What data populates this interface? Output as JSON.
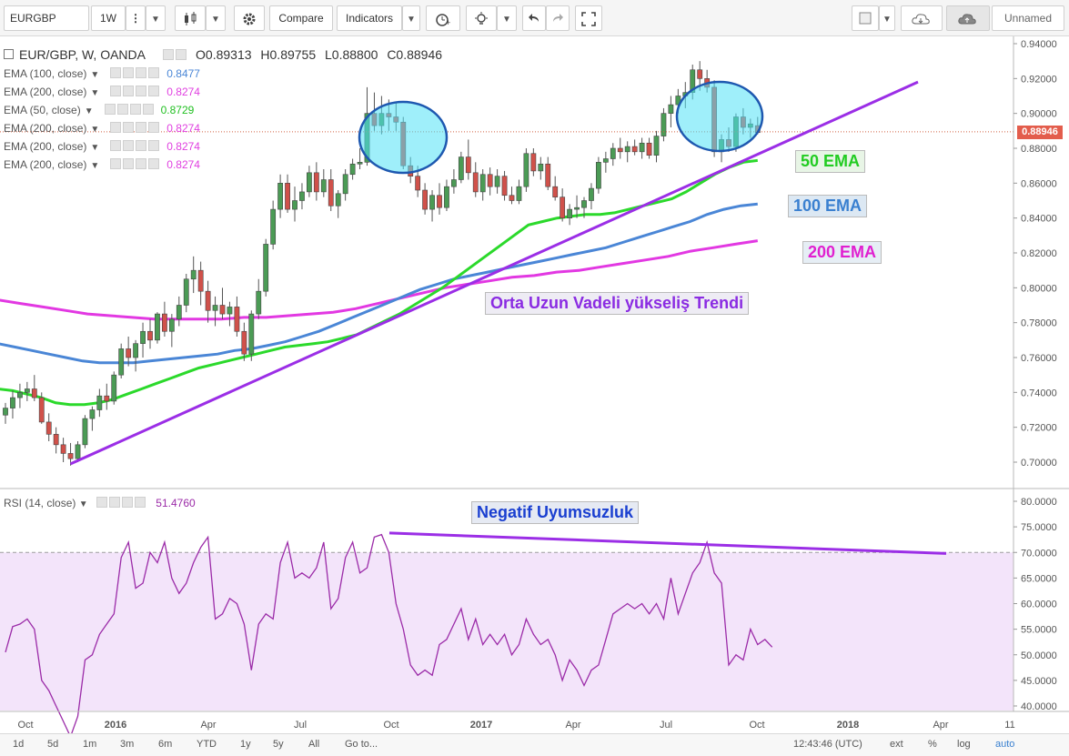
{
  "toolbar": {
    "symbol": "EURGBP",
    "interval": "1W",
    "compare_label": "Compare",
    "indicators_label": "Indicators",
    "layout_label": "Unnamed"
  },
  "legend": {
    "pair_label": "EUR/GBP, W, OANDA",
    "open": "O0.89313",
    "high": "H0.89755",
    "low": "L0.88800",
    "close": "C0.88946",
    "indicators": [
      {
        "label": "EMA (100, close)",
        "value": "0.8477",
        "color": "#4a86d6"
      },
      {
        "label": "EMA (200, close)",
        "value": "0.8274",
        "color": "#e040e0"
      },
      {
        "label": "EMA (50, close)",
        "value": "0.8729",
        "color": "#22c022"
      },
      {
        "label": "EMA (200, close)",
        "value": "0.8274",
        "color": "#e040e0"
      },
      {
        "label": "EMA (200, close)",
        "value": "0.8274",
        "color": "#e040e0"
      },
      {
        "label": "EMA (200, close)",
        "value": "0.8274",
        "color": "#e040e0"
      }
    ],
    "rsi_label": "RSI (14, close)",
    "rsi_value": "51.4760"
  },
  "price_badge": "0.88946",
  "annotations": {
    "ema50": "50 EMA",
    "ema100": "100 EMA",
    "ema200": "200 EMA",
    "trend": "Orta Uzun Vadeli yükseliş Trendi",
    "divergence": "Negatif Uyumsuzluk"
  },
  "bottombar": {
    "ranges": [
      "1d",
      "5d",
      "1m",
      "3m",
      "6m",
      "YTD",
      "1y",
      "5y",
      "All"
    ],
    "goto": "Go to...",
    "time": "12:43:46 (UTC)",
    "ext": "ext",
    "pct": "%",
    "log": "log",
    "auto": "auto"
  },
  "chart_data": [
    {
      "type": "candlestick",
      "ylim": [
        0.69,
        0.945
      ],
      "yticks": [
        "0.94000",
        "0.92000",
        "0.90000",
        "0.88000",
        "0.86000",
        "0.84000",
        "0.82000",
        "0.80000",
        "0.78000",
        "0.76000",
        "0.74000",
        "0.72000",
        "0.70000"
      ],
      "xticks": [
        "Oct",
        "2016",
        "Apr",
        "Jul",
        "Oct",
        "2017",
        "Apr",
        "Jul",
        "Oct",
        "2018",
        "Apr",
        "11"
      ],
      "candles": [
        [
          0.727,
          0.734,
          0.722,
          0.731
        ],
        [
          0.731,
          0.741,
          0.725,
          0.737
        ],
        [
          0.737,
          0.745,
          0.731,
          0.74
        ],
        [
          0.74,
          0.746,
          0.735,
          0.742
        ],
        [
          0.742,
          0.75,
          0.735,
          0.737
        ],
        [
          0.737,
          0.74,
          0.722,
          0.723
        ],
        [
          0.723,
          0.728,
          0.712,
          0.716
        ],
        [
          0.716,
          0.72,
          0.705,
          0.71
        ],
        [
          0.71,
          0.714,
          0.7,
          0.705
        ],
        [
          0.705,
          0.711,
          0.698,
          0.702
        ],
        [
          0.702,
          0.712,
          0.7,
          0.71
        ],
        [
          0.71,
          0.727,
          0.708,
          0.725
        ],
        [
          0.725,
          0.732,
          0.718,
          0.73
        ],
        [
          0.73,
          0.742,
          0.726,
          0.738
        ],
        [
          0.738,
          0.745,
          0.73,
          0.735
        ],
        [
          0.735,
          0.752,
          0.733,
          0.75
        ],
        [
          0.75,
          0.768,
          0.748,
          0.765
        ],
        [
          0.765,
          0.772,
          0.755,
          0.76
        ],
        [
          0.76,
          0.77,
          0.752,
          0.768
        ],
        [
          0.768,
          0.78,
          0.76,
          0.775
        ],
        [
          0.775,
          0.782,
          0.765,
          0.77
        ],
        [
          0.77,
          0.786,
          0.768,
          0.785
        ],
        [
          0.785,
          0.792,
          0.772,
          0.775
        ],
        [
          0.775,
          0.785,
          0.766,
          0.782
        ],
        [
          0.782,
          0.795,
          0.778,
          0.79
        ],
        [
          0.79,
          0.808,
          0.786,
          0.805
        ],
        [
          0.805,
          0.818,
          0.797,
          0.81
        ],
        [
          0.81,
          0.815,
          0.79,
          0.798
        ],
        [
          0.798,
          0.804,
          0.78,
          0.787
        ],
        [
          0.787,
          0.795,
          0.778,
          0.79
        ],
        [
          0.79,
          0.8,
          0.782,
          0.785
        ],
        [
          0.785,
          0.792,
          0.778,
          0.789
        ],
        [
          0.789,
          0.795,
          0.772,
          0.775
        ],
        [
          0.775,
          0.78,
          0.758,
          0.762
        ],
        [
          0.762,
          0.787,
          0.758,
          0.785
        ],
        [
          0.785,
          0.805,
          0.782,
          0.798
        ],
        [
          0.798,
          0.828,
          0.795,
          0.825
        ],
        [
          0.825,
          0.85,
          0.822,
          0.845
        ],
        [
          0.845,
          0.865,
          0.84,
          0.86
        ],
        [
          0.86,
          0.865,
          0.843,
          0.845
        ],
        [
          0.845,
          0.858,
          0.838,
          0.85
        ],
        [
          0.85,
          0.86,
          0.845,
          0.855
        ],
        [
          0.855,
          0.87,
          0.852,
          0.866
        ],
        [
          0.866,
          0.872,
          0.85,
          0.855
        ],
        [
          0.855,
          0.868,
          0.852,
          0.862
        ],
        [
          0.862,
          0.868,
          0.844,
          0.847
        ],
        [
          0.847,
          0.856,
          0.84,
          0.854
        ],
        [
          0.854,
          0.868,
          0.85,
          0.865
        ],
        [
          0.865,
          0.874,
          0.862,
          0.871
        ],
        [
          0.871,
          0.88,
          0.868,
          0.872
        ],
        [
          0.872,
          0.915,
          0.87,
          0.9
        ],
        [
          0.9,
          0.912,
          0.89,
          0.893
        ],
        [
          0.893,
          0.91,
          0.888,
          0.9
        ],
        [
          0.9,
          0.908,
          0.89,
          0.898
        ],
        [
          0.898,
          0.906,
          0.89,
          0.895
        ],
        [
          0.895,
          0.898,
          0.868,
          0.87
        ],
        [
          0.87,
          0.875,
          0.86,
          0.864
        ],
        [
          0.864,
          0.87,
          0.852,
          0.856
        ],
        [
          0.856,
          0.86,
          0.842,
          0.845
        ],
        [
          0.845,
          0.856,
          0.838,
          0.853
        ],
        [
          0.853,
          0.86,
          0.842,
          0.846
        ],
        [
          0.846,
          0.862,
          0.844,
          0.858
        ],
        [
          0.858,
          0.868,
          0.854,
          0.862
        ],
        [
          0.862,
          0.878,
          0.86,
          0.875
        ],
        [
          0.875,
          0.885,
          0.862,
          0.866
        ],
        [
          0.866,
          0.872,
          0.852,
          0.855
        ],
        [
          0.855,
          0.868,
          0.85,
          0.865
        ],
        [
          0.865,
          0.869,
          0.853,
          0.858
        ],
        [
          0.858,
          0.868,
          0.854,
          0.864
        ],
        [
          0.864,
          0.867,
          0.85,
          0.853
        ],
        [
          0.853,
          0.858,
          0.848,
          0.85
        ],
        [
          0.85,
          0.862,
          0.848,
          0.858
        ],
        [
          0.858,
          0.88,
          0.855,
          0.877
        ],
        [
          0.877,
          0.88,
          0.864,
          0.867
        ],
        [
          0.867,
          0.875,
          0.862,
          0.871
        ],
        [
          0.871,
          0.875,
          0.856,
          0.858
        ],
        [
          0.858,
          0.864,
          0.85,
          0.852
        ],
        [
          0.852,
          0.857,
          0.838,
          0.84
        ],
        [
          0.84,
          0.848,
          0.836,
          0.845
        ],
        [
          0.845,
          0.853,
          0.84,
          0.846
        ],
        [
          0.846,
          0.852,
          0.84,
          0.85
        ],
        [
          0.85,
          0.86,
          0.845,
          0.857
        ],
        [
          0.857,
          0.875,
          0.854,
          0.872
        ],
        [
          0.872,
          0.878,
          0.866,
          0.874
        ],
        [
          0.874,
          0.883,
          0.87,
          0.88
        ],
        [
          0.88,
          0.886,
          0.874,
          0.878
        ],
        [
          0.878,
          0.884,
          0.872,
          0.881
        ],
        [
          0.881,
          0.885,
          0.876,
          0.878
        ],
        [
          0.878,
          0.886,
          0.874,
          0.883
        ],
        [
          0.883,
          0.886,
          0.874,
          0.876
        ],
        [
          0.876,
          0.89,
          0.872,
          0.887
        ],
        [
          0.887,
          0.903,
          0.884,
          0.9
        ],
        [
          0.9,
          0.91,
          0.892,
          0.905
        ],
        [
          0.905,
          0.914,
          0.9,
          0.91
        ],
        [
          0.91,
          0.918,
          0.903,
          0.912
        ],
        [
          0.912,
          0.928,
          0.908,
          0.925
        ],
        [
          0.925,
          0.93,
          0.913,
          0.92
        ],
        [
          0.92,
          0.925,
          0.912,
          0.915
        ],
        [
          0.915,
          0.919,
          0.875,
          0.878
        ],
        [
          0.878,
          0.888,
          0.872,
          0.885
        ],
        [
          0.885,
          0.892,
          0.878,
          0.881
        ],
        [
          0.881,
          0.9,
          0.878,
          0.898
        ],
        [
          0.898,
          0.903,
          0.888,
          0.892
        ],
        [
          0.892,
          0.897,
          0.886,
          0.894
        ],
        [
          0.893,
          0.898,
          0.888,
          0.889
        ]
      ],
      "ema50": [
        0.742,
        0.741,
        0.739,
        0.737,
        0.734,
        0.733,
        0.733,
        0.734,
        0.736,
        0.739,
        0.742,
        0.745,
        0.748,
        0.751,
        0.754,
        0.756,
        0.758,
        0.76,
        0.762,
        0.764,
        0.766,
        0.767,
        0.768,
        0.769,
        0.771,
        0.773,
        0.777,
        0.781,
        0.785,
        0.79,
        0.795,
        0.8,
        0.806,
        0.812,
        0.818,
        0.824,
        0.83,
        0.836,
        0.838,
        0.84,
        0.841,
        0.842,
        0.842,
        0.843,
        0.845,
        0.847,
        0.849,
        0.851,
        0.855,
        0.86,
        0.865,
        0.869,
        0.872,
        0.873
      ],
      "ema100": [
        0.768,
        0.766,
        0.764,
        0.762,
        0.76,
        0.758,
        0.757,
        0.757,
        0.757,
        0.758,
        0.759,
        0.76,
        0.761,
        0.762,
        0.764,
        0.765,
        0.767,
        0.769,
        0.772,
        0.775,
        0.779,
        0.783,
        0.787,
        0.791,
        0.795,
        0.799,
        0.802,
        0.805,
        0.807,
        0.809,
        0.811,
        0.813,
        0.815,
        0.817,
        0.819,
        0.821,
        0.823,
        0.826,
        0.829,
        0.832,
        0.835,
        0.838,
        0.842,
        0.845,
        0.847,
        0.848
      ],
      "ema200": [
        0.793,
        0.791,
        0.789,
        0.787,
        0.785,
        0.784,
        0.783,
        0.782,
        0.782,
        0.782,
        0.782,
        0.783,
        0.783,
        0.784,
        0.785,
        0.786,
        0.788,
        0.791,
        0.794,
        0.797,
        0.8,
        0.802,
        0.804,
        0.806,
        0.807,
        0.809,
        0.81,
        0.812,
        0.814,
        0.816,
        0.818,
        0.821,
        0.823,
        0.825,
        0.827
      ],
      "trendline": [
        [
          0.699,
          0.918
        ]
      ],
      "price_line": 0.88946
    },
    {
      "type": "line",
      "name": "RSI (14, close)",
      "ylim": [
        39,
        81
      ],
      "yticks": [
        "80.0000",
        "75.0000",
        "70.0000",
        "65.0000",
        "60.0000",
        "55.0000",
        "50.0000",
        "45.0000",
        "40.0000"
      ],
      "band": [
        30,
        70
      ],
      "values": [
        50.5,
        55.5,
        56,
        57,
        55,
        45,
        43,
        40,
        37,
        34,
        38,
        49,
        50,
        54,
        56,
        58,
        69,
        72,
        63,
        64,
        70,
        68,
        72,
        65,
        62,
        64,
        68,
        71,
        73,
        57,
        58,
        61,
        60,
        56,
        47,
        56,
        58,
        57,
        68,
        72,
        65,
        66,
        65,
        67,
        72,
        59,
        61,
        69,
        72,
        66,
        67,
        73,
        73.5,
        70,
        60,
        55,
        48,
        46,
        47,
        46,
        52,
        53,
        56,
        59,
        53,
        57,
        52,
        54,
        52,
        54,
        50,
        52,
        57,
        54,
        52,
        53,
        50,
        45,
        49,
        47,
        44,
        47,
        48,
        53,
        58,
        59,
        60,
        59,
        60,
        58,
        60,
        57,
        65,
        58,
        62,
        66,
        68,
        72,
        66,
        64,
        48,
        50,
        49,
        55,
        52,
        53,
        51.5
      ],
      "divergence_line": [
        73.8,
        69.8
      ]
    }
  ]
}
